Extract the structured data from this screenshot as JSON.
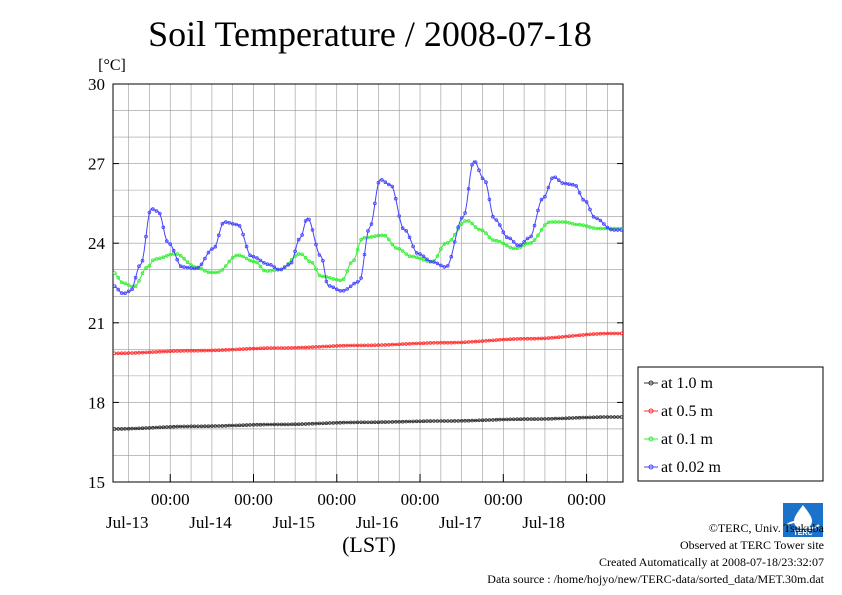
{
  "chart_data": {
    "type": "line",
    "title": "Soil Temperature / 2008-07-18",
    "ylabel": "[°C]",
    "xlabel": "(LST)",
    "ylim": [
      15,
      30
    ],
    "yticks": [
      15,
      18,
      21,
      24,
      27,
      30
    ],
    "xlim_hours": [
      0,
      144
    ],
    "x_tick_labels": [
      {
        "time": "00:00",
        "day": "Jul-13"
      },
      {
        "time": "00:00",
        "day": "Jul-14"
      },
      {
        "time": "00:00",
        "day": "Jul-15"
      },
      {
        "time": "00:00",
        "day": "Jul-16"
      },
      {
        "time": "00:00",
        "day": "Jul-17"
      },
      {
        "time": "00:00",
        "day": "Jul-18"
      }
    ],
    "grid": true,
    "legend_position": "right-bottom",
    "series": [
      {
        "name": "at 1.0 m",
        "color": "#333333",
        "x_hours": [
          0,
          24,
          48,
          72,
          96,
          120,
          144
        ],
        "values": [
          17.0,
          17.1,
          17.17,
          17.25,
          17.3,
          17.37,
          17.45
        ]
      },
      {
        "name": "at 0.5 m",
        "color": "#ff3030",
        "x_hours": [
          0,
          24,
          48,
          72,
          96,
          120,
          144
        ],
        "values": [
          19.85,
          19.95,
          20.05,
          20.15,
          20.25,
          20.4,
          20.6
        ]
      },
      {
        "name": "at 0.1 m",
        "color": "#33ee33",
        "x_hours": [
          0,
          3,
          6,
          10,
          12,
          18,
          24,
          28,
          30,
          36,
          41,
          44,
          48,
          54,
          57,
          60,
          66,
          69,
          72,
          78,
          82,
          86,
          92,
          96,
          102,
          106,
          110,
          116,
          120,
          126,
          130,
          134,
          140,
          144
        ],
        "values": [
          22.9,
          22.5,
          22.35,
          23.1,
          23.4,
          23.6,
          23.1,
          22.9,
          22.9,
          23.55,
          23.3,
          22.95,
          23.0,
          23.6,
          23.3,
          22.75,
          22.6,
          23.3,
          24.2,
          24.3,
          23.8,
          23.5,
          23.3,
          24.0,
          24.85,
          24.5,
          24.1,
          23.8,
          24.0,
          24.8,
          24.8,
          24.7,
          24.55,
          24.55
        ]
      },
      {
        "name": "at 0.02 m",
        "color": "#4444ff",
        "x_hours": [
          0,
          3,
          5,
          8,
          11,
          13,
          16,
          20,
          24,
          29,
          32,
          36,
          40,
          45,
          48,
          51,
          54,
          56,
          60,
          62,
          66,
          71,
          74,
          77,
          80,
          84,
          88,
          92,
          96,
          101,
          104,
          107,
          110,
          114,
          117,
          120,
          124,
          127,
          130,
          133,
          136,
          139,
          144
        ],
        "values": [
          22.4,
          22.1,
          22.2,
          23.2,
          25.3,
          25.2,
          24.0,
          23.1,
          23.05,
          23.8,
          24.8,
          24.7,
          23.5,
          23.2,
          23.0,
          23.2,
          24.2,
          24.95,
          23.5,
          22.4,
          22.2,
          22.55,
          24.6,
          26.4,
          26.2,
          24.5,
          23.6,
          23.3,
          23.1,
          25.0,
          27.1,
          26.4,
          24.9,
          24.2,
          23.9,
          24.2,
          25.7,
          26.5,
          26.25,
          26.2,
          25.6,
          24.95,
          24.5
        ]
      }
    ]
  },
  "credits": {
    "line1": "©TERC, Univ. Tsukuba",
    "line2": "Observed at TERC Tower site",
    "line3": "Created Automatically at 2008-07-18/23:32:07",
    "line4": "Data source : /home/hojyo/new/TERC-data/sorted_data/MET.30m.dat"
  },
  "logo": {
    "text": "TERC",
    "color": "#1a73c9"
  }
}
